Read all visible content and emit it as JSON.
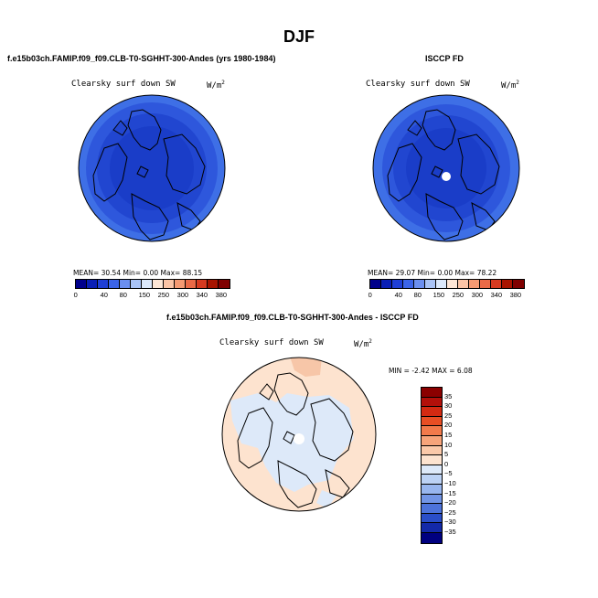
{
  "page": {
    "title": "DJF"
  },
  "panel1": {
    "title": "f.e15b03ch.FAMIP.f09_f09.CLB-T0-SGHHT-300-Andes (yrs 1980-1984)",
    "variable": "Clearsky surf down SW",
    "units": "W/m",
    "units_sup": "2",
    "stats": "MEAN=  30.54  Min=   0.00  Max=  88.15"
  },
  "panel2": {
    "title": "ISCCP FD",
    "variable": "Clearsky surf down SW",
    "units": "W/m",
    "units_sup": "2",
    "stats": "MEAN=  29.07  Min=   0.00  Max=  78.22"
  },
  "panel3": {
    "title": "f.e15b03ch.FAMIP.f09_f09.CLB-T0-SGHHT-300-Andes - ISCCP FD",
    "variable": "Clearsky surf down SW",
    "units": "W/m",
    "units_sup": "2",
    "minmax": "MIN =  -2.42 MAX =   6.08"
  },
  "colorbar_top": {
    "labels": [
      "0",
      "40",
      "80",
      "150",
      "250",
      "300",
      "340",
      "380"
    ],
    "colors": [
      "#00008b",
      "#0a1fb5",
      "#1f3fd6",
      "#3b64e8",
      "#6b8ff0",
      "#a9c3f6",
      "#dbe8fb",
      "#fde6d6",
      "#fbc4a6",
      "#f59a73",
      "#ea6a47",
      "#d63a20",
      "#a81400",
      "#7f0000"
    ]
  },
  "colorbar_diff": {
    "labels": [
      "35",
      "30",
      "25",
      "20",
      "15",
      "10",
      "5",
      "0",
      "−5",
      "−10",
      "−15",
      "−20",
      "−25",
      "−30",
      "−35"
    ],
    "colors": [
      "#8b0000",
      "#b3100a",
      "#d32a12",
      "#e84e24",
      "#f27a4b",
      "#f7a47a",
      "#fbc9a9",
      "#fde3cf",
      "#dde9f9",
      "#bcd2f5",
      "#98b6ef",
      "#7295e6",
      "#4d73da",
      "#2a4ec8",
      "#1329a8",
      "#000080"
    ]
  },
  "map_colors": {
    "outer_ring": "#3e6fe6",
    "ring2": "#2e57dc",
    "ring3": "#2146d0",
    "inner": "#1a3dc8",
    "diff_positive": "#fde3cf",
    "diff_negative": "#dde9f9"
  }
}
